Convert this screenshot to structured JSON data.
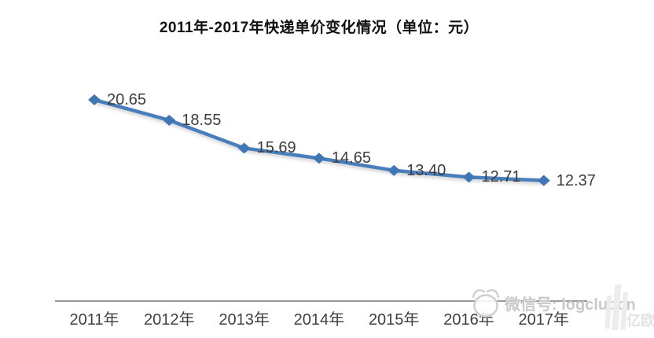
{
  "chart_data": {
    "type": "line",
    "title": "2011年-2017年快递单价变化情况（单位：元）",
    "categories": [
      "2011年",
      "2012年",
      "2013年",
      "2014年",
      "2015年",
      "2016年",
      "2017年"
    ],
    "values": [
      20.65,
      18.55,
      15.69,
      14.65,
      13.4,
      12.71,
      12.37
    ],
    "data_labels": [
      "20.65",
      "18.55",
      "15.69",
      "14.65",
      "13.40",
      "12.71",
      "12.37"
    ],
    "xlabel": "",
    "ylabel": "",
    "ylim": [
      0,
      25
    ],
    "grid": false,
    "legend": false,
    "y_axis_visible": false,
    "marker": "diamond",
    "line_color": "#4a7ebc"
  },
  "colors": {
    "line": "#4a7ebc",
    "marker": "#4176b4",
    "data_label": "#3d3d3d",
    "axis_line": "#9a9a9a",
    "title": "#111111",
    "watermark_text": "#c8c8c8",
    "watermark_logo": "#eaeaea"
  },
  "watermark": {
    "wechat_text": "微信号: logclubcn",
    "brand_text": "亿欧"
  }
}
